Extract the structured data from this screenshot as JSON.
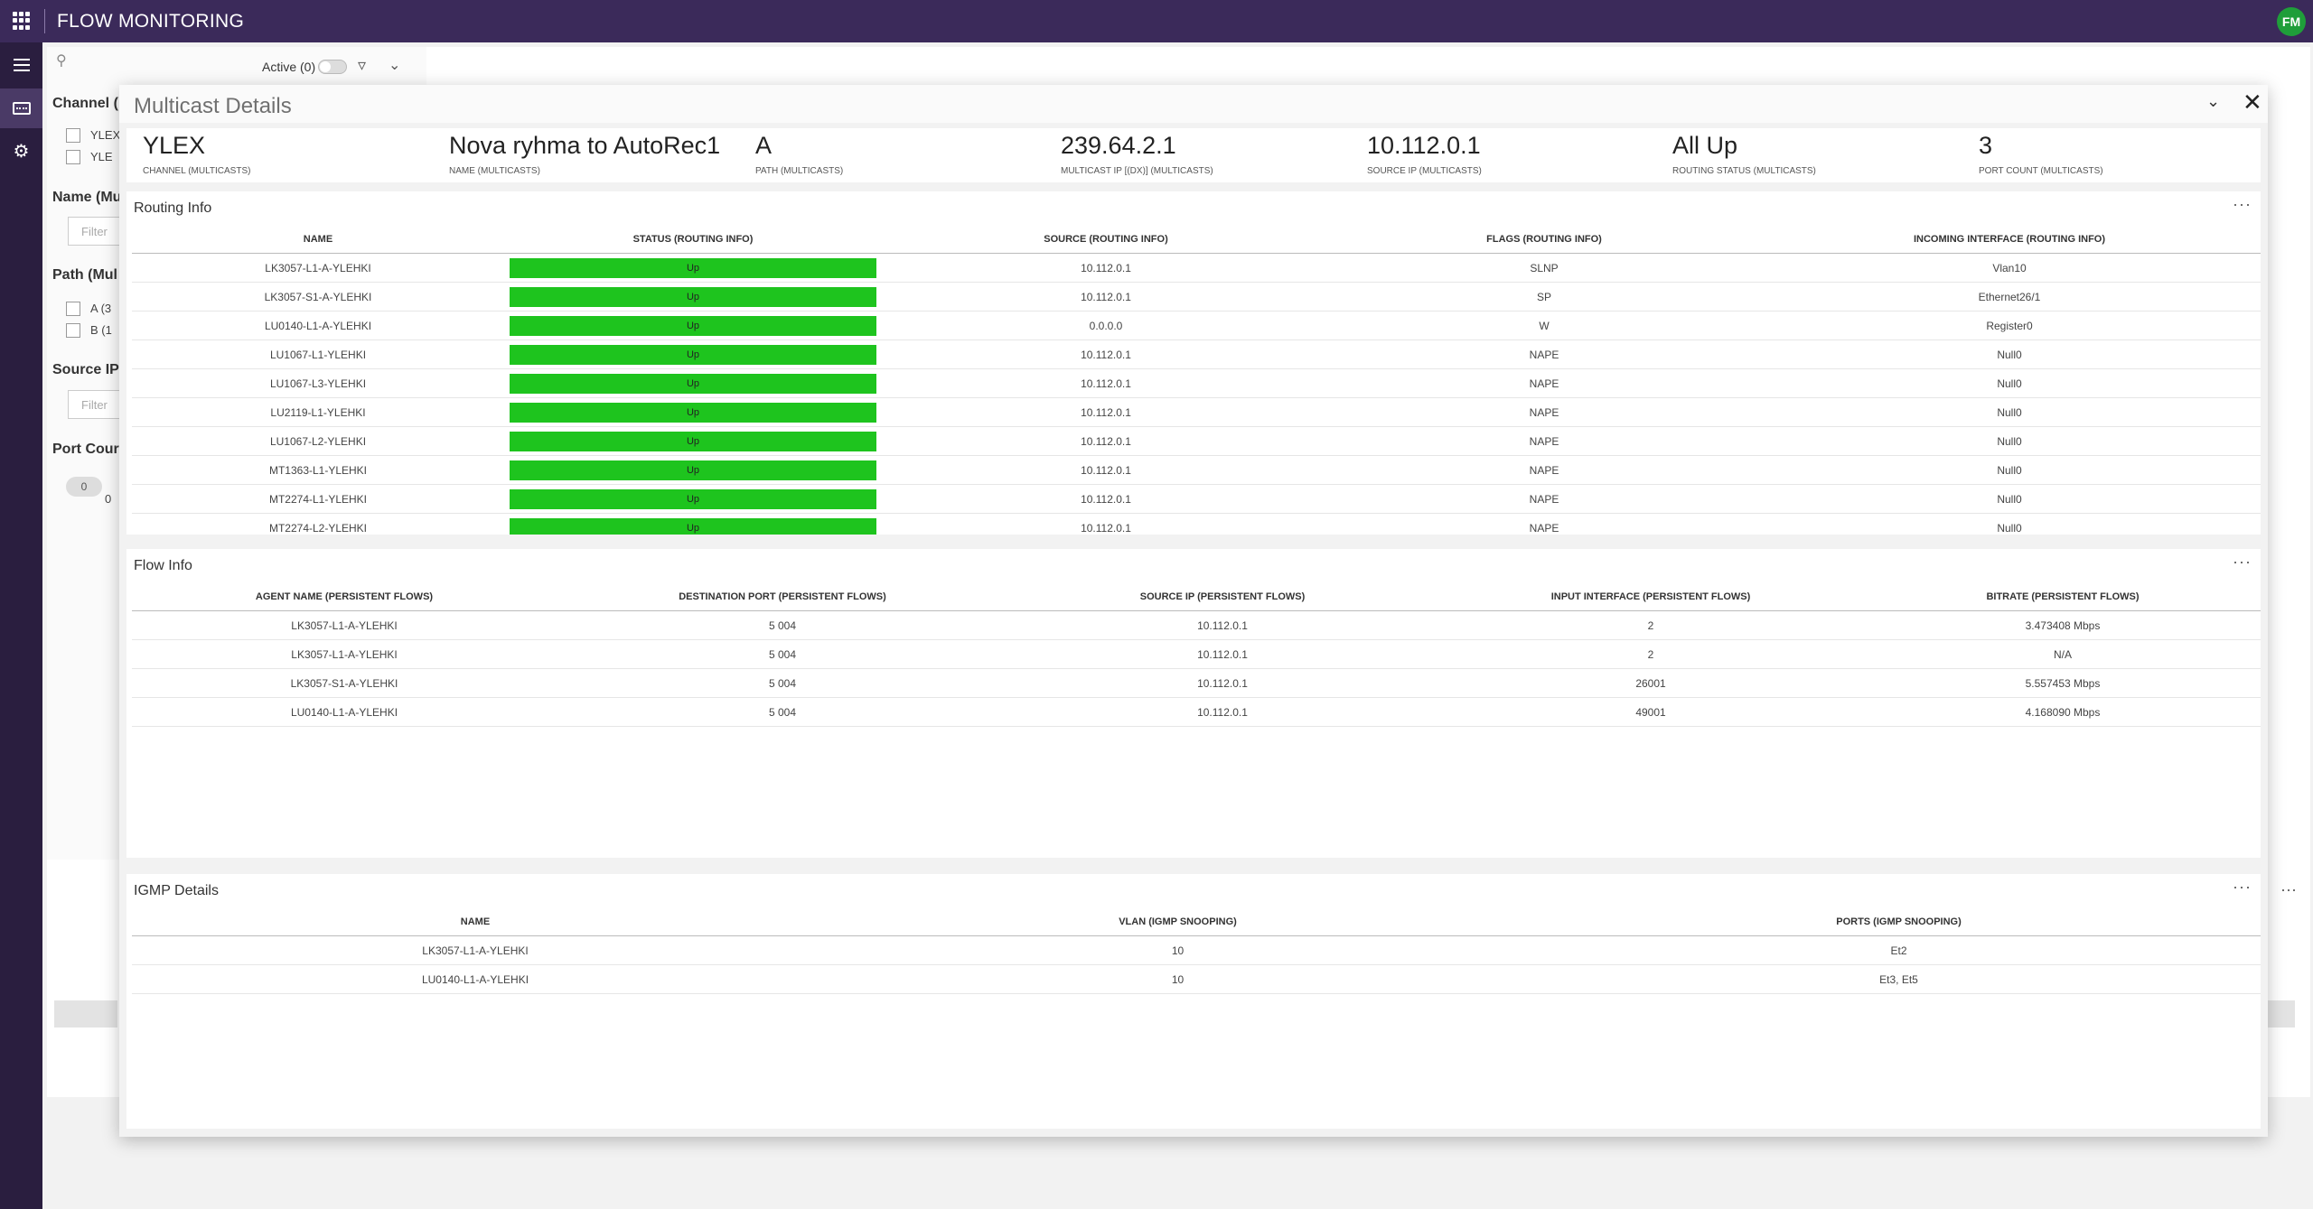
{
  "app": {
    "title": "FLOW MONITORING",
    "user_initials": "FM"
  },
  "background": {
    "active_label": "Active (0)",
    "filters": {
      "channel": "Channel (",
      "channel_opts": [
        "YLEX",
        "YLE"
      ],
      "name": "Name (Mu",
      "filter_placeholder": "Filter",
      "path": "Path (Mul",
      "path_opts": [
        "A (3",
        "B (1"
      ],
      "source_ip": "Source IP",
      "port_count": "Port Cour",
      "port_pill": "0",
      "port_zero": "0"
    }
  },
  "modal": {
    "title": "Multicast Details",
    "summary": [
      {
        "value": "YLEX",
        "label": "CHANNEL (MULTICASTS)"
      },
      {
        "value": "Nova ryhma to AutoRec1",
        "label": "NAME (MULTICASTS)"
      },
      {
        "value": "A",
        "label": "PATH (MULTICASTS)"
      },
      {
        "value": "239.64.2.1",
        "label": "MULTICAST IP [(DX)] (MULTICASTS)"
      },
      {
        "value": "10.112.0.1",
        "label": "SOURCE IP (MULTICASTS)"
      },
      {
        "value": "All Up",
        "label": "ROUTING STATUS (MULTICASTS)"
      },
      {
        "value": "3",
        "label": "PORT COUNT (MULTICASTS)"
      }
    ],
    "routing": {
      "title": "Routing Info",
      "more": "···",
      "columns": [
        "NAME",
        "STATUS (ROUTING INFO)",
        "SOURCE (ROUTING INFO)",
        "FLAGS (ROUTING INFO)",
        "INCOMING INTERFACE (ROUTING INFO)"
      ],
      "rows": [
        [
          "LK3057-L1-A-YLEHKI",
          "Up",
          "10.112.0.1",
          "SLNP",
          "Vlan10"
        ],
        [
          "LK3057-S1-A-YLEHKI",
          "Up",
          "10.112.0.1",
          "SP",
          "Ethernet26/1"
        ],
        [
          "LU0140-L1-A-YLEHKI",
          "Up",
          "0.0.0.0",
          "W",
          "Register0"
        ],
        [
          "LU1067-L1-YLEHKI",
          "Up",
          "10.112.0.1",
          "NAPE",
          "Null0"
        ],
        [
          "LU1067-L3-YLEHKI",
          "Up",
          "10.112.0.1",
          "NAPE",
          "Null0"
        ],
        [
          "LU2119-L1-YLEHKI",
          "Up",
          "10.112.0.1",
          "NAPE",
          "Null0"
        ],
        [
          "LU1067-L2-YLEHKI",
          "Up",
          "10.112.0.1",
          "NAPE",
          "Null0"
        ],
        [
          "MT1363-L1-YLEHKI",
          "Up",
          "10.112.0.1",
          "NAPE",
          "Null0"
        ],
        [
          "MT2274-L1-YLEHKI",
          "Up",
          "10.112.0.1",
          "NAPE",
          "Null0"
        ],
        [
          "MT2274-L2-YLEHKI",
          "Up",
          "10.112.0.1",
          "NAPE",
          "Null0"
        ]
      ]
    },
    "flow": {
      "title": "Flow Info",
      "more": "···",
      "columns": [
        "AGENT NAME (PERSISTENT FLOWS)",
        "DESTINATION PORT (PERSISTENT FLOWS)",
        "SOURCE IP (PERSISTENT FLOWS)",
        "INPUT INTERFACE (PERSISTENT FLOWS)",
        "BITRATE (PERSISTENT FLOWS)"
      ],
      "rows": [
        [
          "LK3057-L1-A-YLEHKI",
          "5 004",
          "10.112.0.1",
          "2",
          "3.473408 Mbps"
        ],
        [
          "LK3057-L1-A-YLEHKI",
          "5 004",
          "10.112.0.1",
          "2",
          "N/A"
        ],
        [
          "LK3057-S1-A-YLEHKI",
          "5 004",
          "10.112.0.1",
          "26001",
          "5.557453 Mbps"
        ],
        [
          "LU0140-L1-A-YLEHKI",
          "5 004",
          "10.112.0.1",
          "49001",
          "4.168090 Mbps"
        ]
      ]
    },
    "igmp": {
      "title": "IGMP Details",
      "more": "···",
      "columns": [
        "NAME",
        "VLAN (IGMP SNOOPING)",
        "PORTS (IGMP SNOOPING)"
      ],
      "rows": [
        [
          "LK3057-L1-A-YLEHKI",
          "10",
          "Et2"
        ],
        [
          "LU0140-L1-A-YLEHKI",
          "10",
          "Et3, Et5"
        ]
      ]
    }
  },
  "colors": {
    "topbar": "#3b2a5a",
    "rail": "#2a1e3f",
    "status_up": "#1ec41e",
    "avatar": "#1f9e3a"
  }
}
